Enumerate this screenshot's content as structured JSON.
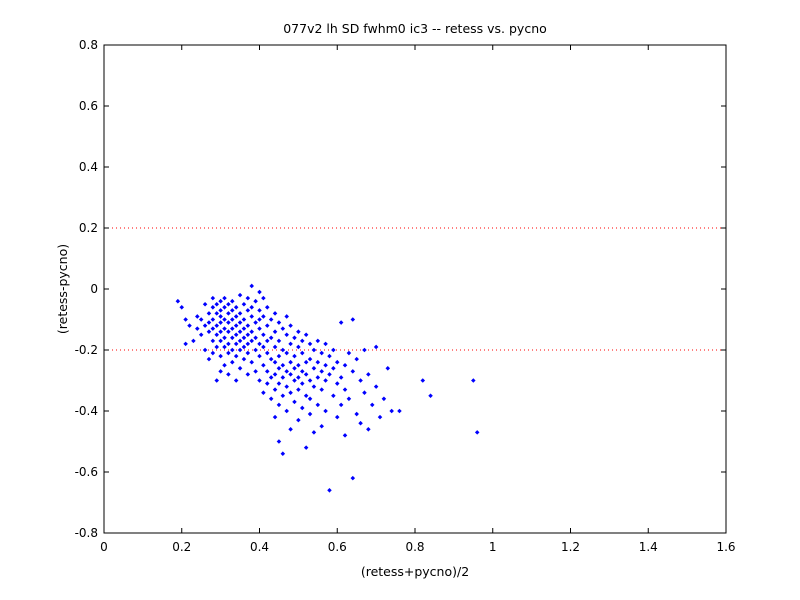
{
  "chart_data": {
    "type": "scatter",
    "title": "077v2 lh SD fwhm0 ic3 -- retess vs. pycno",
    "xlabel": "(retess+pycno)/2",
    "ylabel": "(retess-pycno)",
    "xlim": [
      0,
      1.6
    ],
    "ylim": [
      -0.8,
      0.8
    ],
    "xticks": [
      "0",
      "0.2",
      "0.4",
      "0.6",
      "0.8",
      "1",
      "1.2",
      "1.4",
      "1.6"
    ],
    "yticks": [
      "-0.8",
      "-0.6",
      "-0.4",
      "-0.2",
      "0",
      "0.2",
      "0.4",
      "0.6",
      "0.8"
    ],
    "grid": false,
    "reference_lines": [
      {
        "y": 0.2,
        "color": "#ff0000",
        "style": "dotted"
      },
      {
        "y": -0.2,
        "color": "#ff0000",
        "style": "dotted"
      }
    ],
    "marker_color": "#0000ff",
    "series": [
      {
        "name": "",
        "points": [
          [
            0.19,
            -0.04
          ],
          [
            0.2,
            -0.06
          ],
          [
            0.21,
            -0.1
          ],
          [
            0.21,
            -0.18
          ],
          [
            0.22,
            -0.12
          ],
          [
            0.23,
            -0.17
          ],
          [
            0.24,
            -0.09
          ],
          [
            0.24,
            -0.13
          ],
          [
            0.25,
            -0.1
          ],
          [
            0.25,
            -0.15
          ],
          [
            0.26,
            -0.05
          ],
          [
            0.26,
            -0.12
          ],
          [
            0.26,
            -0.2
          ],
          [
            0.27,
            -0.08
          ],
          [
            0.27,
            -0.11
          ],
          [
            0.27,
            -0.14
          ],
          [
            0.27,
            -0.23
          ],
          [
            0.28,
            -0.03
          ],
          [
            0.28,
            -0.06
          ],
          [
            0.28,
            -0.1
          ],
          [
            0.28,
            -0.13
          ],
          [
            0.28,
            -0.17
          ],
          [
            0.28,
            -0.21
          ],
          [
            0.29,
            -0.05
          ],
          [
            0.29,
            -0.08
          ],
          [
            0.29,
            -0.12
          ],
          [
            0.29,
            -0.15
          ],
          [
            0.29,
            -0.19
          ],
          [
            0.29,
            -0.3
          ],
          [
            0.3,
            -0.04
          ],
          [
            0.3,
            -0.07
          ],
          [
            0.3,
            -0.09
          ],
          [
            0.3,
            -0.11
          ],
          [
            0.3,
            -0.14
          ],
          [
            0.3,
            -0.17
          ],
          [
            0.3,
            -0.22
          ],
          [
            0.3,
            -0.27
          ],
          [
            0.31,
            -0.03
          ],
          [
            0.31,
            -0.06
          ],
          [
            0.31,
            -0.1
          ],
          [
            0.31,
            -0.13
          ],
          [
            0.31,
            -0.16
          ],
          [
            0.31,
            -0.19
          ],
          [
            0.31,
            -0.25
          ],
          [
            0.32,
            -0.05
          ],
          [
            0.32,
            -0.08
          ],
          [
            0.32,
            -0.11
          ],
          [
            0.32,
            -0.14
          ],
          [
            0.32,
            -0.18
          ],
          [
            0.32,
            -0.21
          ],
          [
            0.32,
            -0.28
          ],
          [
            0.33,
            -0.04
          ],
          [
            0.33,
            -0.07
          ],
          [
            0.33,
            -0.1
          ],
          [
            0.33,
            -0.13
          ],
          [
            0.33,
            -0.16
          ],
          [
            0.33,
            -0.2
          ],
          [
            0.33,
            -0.24
          ],
          [
            0.34,
            -0.06
          ],
          [
            0.34,
            -0.09
          ],
          [
            0.34,
            -0.12
          ],
          [
            0.34,
            -0.15
          ],
          [
            0.34,
            -0.18
          ],
          [
            0.34,
            -0.22
          ],
          [
            0.34,
            -0.3
          ],
          [
            0.35,
            -0.02
          ],
          [
            0.35,
            -0.08
          ],
          [
            0.35,
            -0.11
          ],
          [
            0.35,
            -0.14
          ],
          [
            0.35,
            -0.17
          ],
          [
            0.35,
            -0.2
          ],
          [
            0.35,
            -0.26
          ],
          [
            0.36,
            -0.05
          ],
          [
            0.36,
            -0.1
          ],
          [
            0.36,
            -0.13
          ],
          [
            0.36,
            -0.16
          ],
          [
            0.36,
            -0.19
          ],
          [
            0.36,
            -0.23
          ],
          [
            0.37,
            -0.03
          ],
          [
            0.37,
            -0.07
          ],
          [
            0.37,
            -0.12
          ],
          [
            0.37,
            -0.15
          ],
          [
            0.37,
            -0.18
          ],
          [
            0.37,
            -0.21
          ],
          [
            0.37,
            -0.28
          ],
          [
            0.38,
            0.01
          ],
          [
            0.38,
            -0.06
          ],
          [
            0.38,
            -0.09
          ],
          [
            0.38,
            -0.14
          ],
          [
            0.38,
            -0.17
          ],
          [
            0.38,
            -0.24
          ],
          [
            0.39,
            -0.04
          ],
          [
            0.39,
            -0.11
          ],
          [
            0.39,
            -0.16
          ],
          [
            0.39,
            -0.2
          ],
          [
            0.39,
            -0.27
          ],
          [
            0.4,
            -0.01
          ],
          [
            0.4,
            -0.07
          ],
          [
            0.4,
            -0.1
          ],
          [
            0.4,
            -0.13
          ],
          [
            0.4,
            -0.18
          ],
          [
            0.4,
            -0.22
          ],
          [
            0.4,
            -0.3
          ],
          [
            0.41,
            -0.03
          ],
          [
            0.41,
            -0.09
          ],
          [
            0.41,
            -0.15
          ],
          [
            0.41,
            -0.19
          ],
          [
            0.41,
            -0.25
          ],
          [
            0.41,
            -0.34
          ],
          [
            0.42,
            -0.06
          ],
          [
            0.42,
            -0.12
          ],
          [
            0.42,
            -0.17
          ],
          [
            0.42,
            -0.21
          ],
          [
            0.42,
            -0.27
          ],
          [
            0.42,
            -0.31
          ],
          [
            0.43,
            -0.1
          ],
          [
            0.43,
            -0.16
          ],
          [
            0.43,
            -0.23
          ],
          [
            0.43,
            -0.29
          ],
          [
            0.43,
            -0.36
          ],
          [
            0.44,
            -0.08
          ],
          [
            0.44,
            -0.14
          ],
          [
            0.44,
            -0.19
          ],
          [
            0.44,
            -0.24
          ],
          [
            0.44,
            -0.28
          ],
          [
            0.44,
            -0.33
          ],
          [
            0.44,
            -0.42
          ],
          [
            0.45,
            -0.11
          ],
          [
            0.45,
            -0.17
          ],
          [
            0.45,
            -0.22
          ],
          [
            0.45,
            -0.26
          ],
          [
            0.45,
            -0.31
          ],
          [
            0.45,
            -0.38
          ],
          [
            0.45,
            -0.5
          ],
          [
            0.46,
            -0.13
          ],
          [
            0.46,
            -0.2
          ],
          [
            0.46,
            -0.25
          ],
          [
            0.46,
            -0.29
          ],
          [
            0.46,
            -0.35
          ],
          [
            0.46,
            -0.54
          ],
          [
            0.47,
            -0.09
          ],
          [
            0.47,
            -0.15
          ],
          [
            0.47,
            -0.21
          ],
          [
            0.47,
            -0.27
          ],
          [
            0.47,
            -0.32
          ],
          [
            0.47,
            -0.4
          ],
          [
            0.48,
            -0.12
          ],
          [
            0.48,
            -0.18
          ],
          [
            0.48,
            -0.24
          ],
          [
            0.48,
            -0.28
          ],
          [
            0.48,
            -0.34
          ],
          [
            0.48,
            -0.46
          ],
          [
            0.49,
            -0.16
          ],
          [
            0.49,
            -0.22
          ],
          [
            0.49,
            -0.26
          ],
          [
            0.49,
            -0.3
          ],
          [
            0.49,
            -0.37
          ],
          [
            0.5,
            -0.14
          ],
          [
            0.5,
            -0.19
          ],
          [
            0.5,
            -0.25
          ],
          [
            0.5,
            -0.29
          ],
          [
            0.5,
            -0.33
          ],
          [
            0.5,
            -0.43
          ],
          [
            0.51,
            -0.17
          ],
          [
            0.51,
            -0.21
          ],
          [
            0.51,
            -0.27
          ],
          [
            0.51,
            -0.31
          ],
          [
            0.51,
            -0.39
          ],
          [
            0.52,
            -0.15
          ],
          [
            0.52,
            -0.24
          ],
          [
            0.52,
            -0.28
          ],
          [
            0.52,
            -0.35
          ],
          [
            0.52,
            -0.52
          ],
          [
            0.53,
            -0.18
          ],
          [
            0.53,
            -0.23
          ],
          [
            0.53,
            -0.3
          ],
          [
            0.53,
            -0.36
          ],
          [
            0.53,
            -0.41
          ],
          [
            0.54,
            -0.2
          ],
          [
            0.54,
            -0.26
          ],
          [
            0.54,
            -0.32
          ],
          [
            0.54,
            -0.47
          ],
          [
            0.55,
            -0.17
          ],
          [
            0.55,
            -0.24
          ],
          [
            0.55,
            -0.29
          ],
          [
            0.55,
            -0.38
          ],
          [
            0.56,
            -0.21
          ],
          [
            0.56,
            -0.27
          ],
          [
            0.56,
            -0.33
          ],
          [
            0.56,
            -0.45
          ],
          [
            0.57,
            -0.18
          ],
          [
            0.57,
            -0.25
          ],
          [
            0.57,
            -0.3
          ],
          [
            0.57,
            -0.4
          ],
          [
            0.58,
            -0.22
          ],
          [
            0.58,
            -0.28
          ],
          [
            0.58,
            -0.66
          ],
          [
            0.59,
            -0.2
          ],
          [
            0.59,
            -0.26
          ],
          [
            0.59,
            -0.35
          ],
          [
            0.6,
            -0.24
          ],
          [
            0.6,
            -0.31
          ],
          [
            0.6,
            -0.42
          ],
          [
            0.61,
            -0.11
          ],
          [
            0.61,
            -0.29
          ],
          [
            0.61,
            -0.38
          ],
          [
            0.62,
            -0.25
          ],
          [
            0.62,
            -0.33
          ],
          [
            0.62,
            -0.48
          ],
          [
            0.63,
            -0.21
          ],
          [
            0.63,
            -0.36
          ],
          [
            0.64,
            -0.1
          ],
          [
            0.64,
            -0.27
          ],
          [
            0.64,
            -0.62
          ],
          [
            0.65,
            -0.23
          ],
          [
            0.65,
            -0.41
          ],
          [
            0.66,
            -0.3
          ],
          [
            0.66,
            -0.44
          ],
          [
            0.67,
            -0.2
          ],
          [
            0.67,
            -0.34
          ],
          [
            0.68,
            -0.28
          ],
          [
            0.68,
            -0.46
          ],
          [
            0.69,
            -0.38
          ],
          [
            0.7,
            -0.19
          ],
          [
            0.7,
            -0.32
          ],
          [
            0.71,
            -0.42
          ],
          [
            0.72,
            -0.36
          ],
          [
            0.73,
            -0.26
          ],
          [
            0.74,
            -0.4
          ],
          [
            0.76,
            -0.4
          ],
          [
            0.82,
            -0.3
          ],
          [
            0.84,
            -0.35
          ],
          [
            0.95,
            -0.3
          ],
          [
            0.96,
            -0.47
          ]
        ]
      }
    ]
  }
}
